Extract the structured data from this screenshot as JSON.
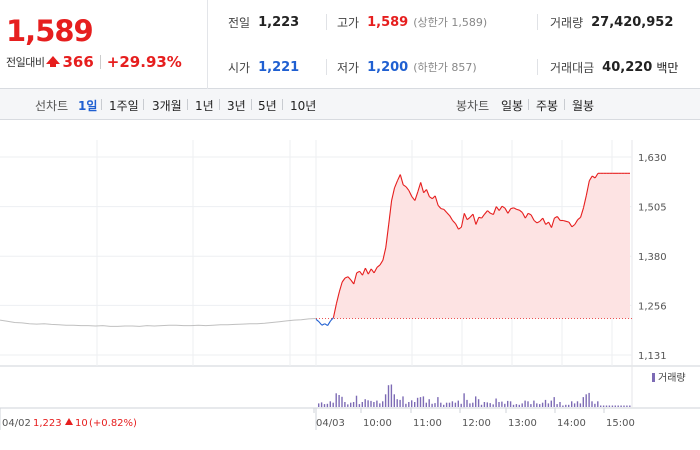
{
  "quote": {
    "price": "1,589",
    "change_label": "전일대비",
    "change": "366",
    "change_pct": "+29.93%",
    "prev_close_label": "전일",
    "prev_close": "1,223",
    "open_label": "시가",
    "open": "1,221",
    "high_label": "고가",
    "high": "1,589",
    "high_note": "(상한가 1,589)",
    "low_label": "저가",
    "low": "1,200",
    "low_note": "(하한가 857)",
    "volume_label": "거래량",
    "volume": "27,420,952",
    "value_label": "거래대금",
    "value": "40,220",
    "value_unit": "백만"
  },
  "tabs": {
    "line_label": "선차트",
    "line_tabs": [
      "1일",
      "1주일",
      "3개월",
      "1년",
      "3년",
      "5년",
      "10년"
    ],
    "active_tab": "1일",
    "candle_label": "봉차트",
    "candle_tabs": [
      "일봉",
      "주봉",
      "월봉"
    ]
  },
  "colors": {
    "up": "#e61e1e",
    "down": "#1f5fd1",
    "fill": "#fde3e3",
    "prev": "#c0c0c0",
    "volume": "#7d6bb5"
  },
  "chart_data": {
    "type": "line",
    "y_ticks": [
      "1,630",
      "1,505",
      "1,380",
      "1,256",
      "1,131"
    ],
    "ylim": [
      1131,
      1630
    ],
    "x_labels": [
      "04/02",
      "04/03",
      "10:00",
      "11:00",
      "12:00",
      "13:00",
      "14:00",
      "15:00"
    ],
    "prev_day_label": {
      "date": "04/02",
      "close": "1,223",
      "change": "10",
      "pct": "(+0.82%)"
    },
    "reference_price": 1223,
    "prev_day_series": [
      1219,
      1216,
      1213,
      1212,
      1210,
      1209,
      1210,
      1208,
      1207,
      1206,
      1206,
      1205,
      1205,
      1204,
      1205,
      1203,
      1203,
      1204,
      1204,
      1203,
      1205,
      1204,
      1205,
      1206,
      1206,
      1205,
      1205,
      1206,
      1205,
      1206,
      1207,
      1207,
      1208,
      1209,
      1210,
      1210,
      1211,
      1213,
      1215,
      1217,
      1219,
      1220,
      1222,
      1223
    ],
    "today_series": [
      1221,
      1215,
      1206,
      1210,
      1205,
      1217,
      1225,
      1260,
      1290,
      1315,
      1325,
      1328,
      1320,
      1310,
      1338,
      1342,
      1332,
      1350,
      1335,
      1348,
      1338,
      1352,
      1358,
      1370,
      1402,
      1460,
      1520,
      1552,
      1570,
      1586,
      1560,
      1555,
      1545,
      1530,
      1520,
      1542,
      1566,
      1540,
      1548,
      1530,
      1525,
      1532,
      1508,
      1500,
      1498,
      1490,
      1482,
      1470,
      1462,
      1448,
      1453,
      1488,
      1472,
      1478,
      1486,
      1460,
      1478,
      1476,
      1486,
      1495,
      1488,
      1485,
      1505,
      1495,
      1506,
      1501,
      1488,
      1500,
      1502,
      1498,
      1496,
      1490,
      1476,
      1488,
      1484,
      1470,
      1464,
      1468,
      1476,
      1460,
      1466,
      1452,
      1476,
      1480,
      1470,
      1470,
      1468,
      1466,
      1454,
      1460,
      1472,
      1478,
      1502,
      1534,
      1570,
      1582,
      1577,
      1589,
      1589,
      1589,
      1589,
      1589,
      1589,
      1589,
      1589,
      1589,
      1589,
      1589,
      1589
    ],
    "volume_label": "거래량"
  }
}
